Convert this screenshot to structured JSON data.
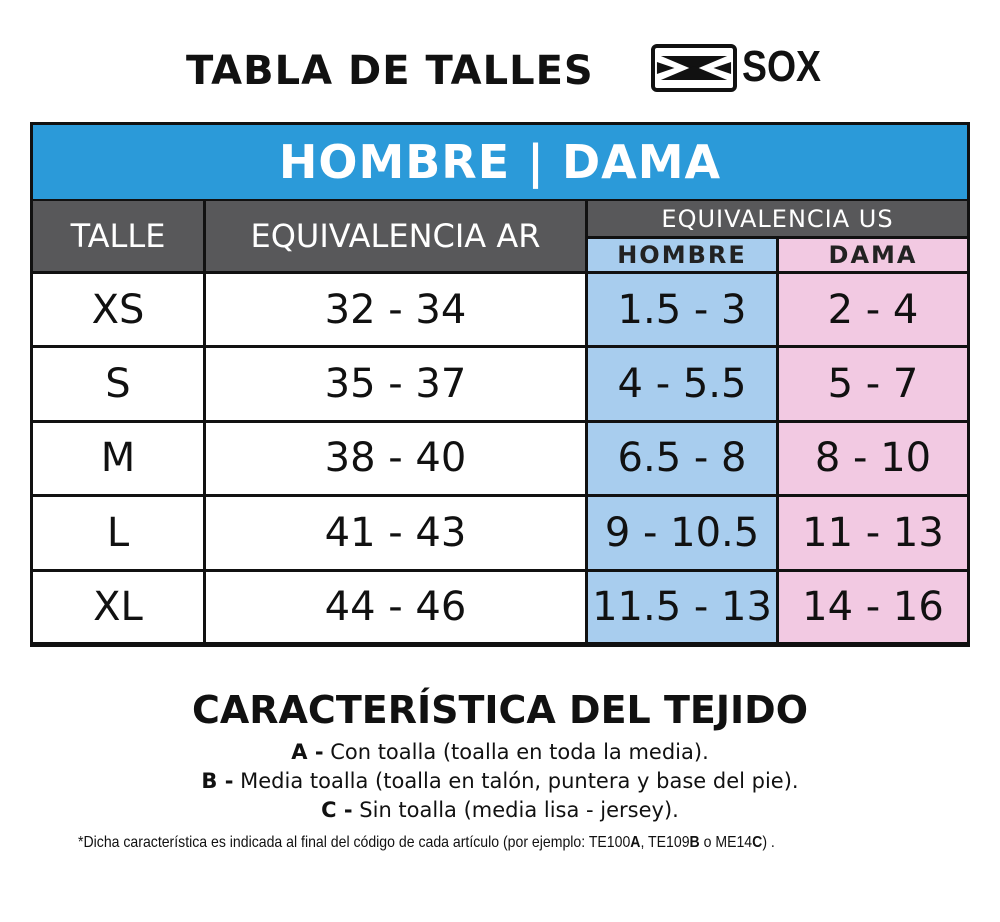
{
  "header": {
    "title": "TABLA DE TALLES",
    "brand": "SOX",
    "logo_icon": "sox-envelope-logo"
  },
  "table": {
    "group_title": "HOMBRE | DAMA",
    "col_talle": "TALLE",
    "col_ar": "EQUIVALENCIA AR",
    "col_us": "EQUIVALENCIA US",
    "col_us_hombre": "HOMBRE",
    "col_us_dama": "DAMA",
    "colors": {
      "header": "#2b9ad9",
      "gray": "#58585a",
      "hombre": "#a8cdee",
      "dama": "#f2c9e2"
    },
    "rows": [
      {
        "talle": "XS",
        "ar": "32 - 34",
        "hombre": "1.5 - 3",
        "dama": "2 - 4"
      },
      {
        "talle": "S",
        "ar": "35 - 37",
        "hombre": "4 - 5.5",
        "dama": "5 - 7"
      },
      {
        "talle": "M",
        "ar": "38 - 40",
        "hombre": "6.5 - 8",
        "dama": "8 - 10"
      },
      {
        "talle": "L",
        "ar": "41 - 43",
        "hombre": "9 - 10.5",
        "dama": "11 - 13"
      },
      {
        "talle": "XL",
        "ar": "44 - 46",
        "hombre": "11.5 - 13",
        "dama": "14 - 16"
      }
    ]
  },
  "fabric": {
    "title": "CARACTERÍSTICA DEL TEJIDO",
    "items": [
      {
        "code": "A -",
        "text": " Con toalla (toalla en toda la media)."
      },
      {
        "code": "B -",
        "text": " Media toalla (toalla en talón, puntera y base del pie)."
      },
      {
        "code": "C -",
        "text": " Sin toalla (media lisa - jersey)."
      }
    ],
    "note": {
      "pre": "*Dicha característica es indicada al final del código de cada artículo (por ejemplo: TE100",
      "a": "A",
      ",": ", T",
      "mid": "E109",
      "b": "B",
      "o": " o ME14",
      "c": "C",
      "end": ") ."
    }
  }
}
